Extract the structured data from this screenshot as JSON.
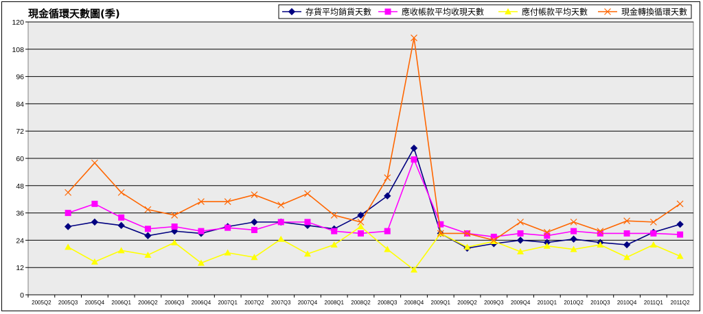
{
  "chart_data": {
    "type": "line",
    "title": "現金循環天數圖(季)",
    "xlabel": "",
    "ylabel": "",
    "ylim": [
      0,
      120
    ],
    "yticks": [
      0,
      12,
      24,
      36,
      48,
      60,
      72,
      84,
      96,
      108,
      120
    ],
    "grid": true,
    "legend_position": "top-right",
    "categories": [
      "2005Q2",
      "2005Q3",
      "2005Q4",
      "2006Q1",
      "2006Q2",
      "2006Q3",
      "2006Q4",
      "2007Q1",
      "2007Q2",
      "2007Q3",
      "2007Q4",
      "2008Q1",
      "2008Q2",
      "2008Q3",
      "2008Q4",
      "2009Q1",
      "2009Q2",
      "2009Q3",
      "2009Q4",
      "2010Q1",
      "2010Q2",
      "2010Q3",
      "2010Q4",
      "2011Q1",
      "2011Q2"
    ],
    "series": [
      {
        "name": "存貨平均銷貨天數",
        "color": "#000080",
        "marker": "diamond",
        "values": [
          null,
          30,
          32,
          30.5,
          26,
          28,
          27,
          30,
          32,
          32,
          30.5,
          29,
          35,
          43.5,
          64.5,
          27,
          20.5,
          22.5,
          24,
          23,
          24.5,
          23,
          22,
          27.5,
          31
        ]
      },
      {
        "name": "應收帳款平均收現天數",
        "color": "#FF00FF",
        "marker": "square",
        "values": [
          null,
          36,
          40,
          34,
          29,
          30,
          28,
          29.5,
          28.5,
          32,
          32,
          28,
          27,
          28,
          59.5,
          31,
          27,
          25.5,
          27,
          26,
          28,
          27,
          27,
          27,
          26.5
        ]
      },
      {
        "name": "應付帳款平均天數",
        "color": "#FFFF00",
        "marker": "triangle",
        "values": [
          null,
          21,
          14.5,
          19.5,
          17.5,
          23,
          14,
          18.5,
          16.5,
          24.5,
          18,
          22,
          30,
          20,
          11,
          27,
          21,
          23.5,
          19,
          21.5,
          20,
          22,
          16.5,
          22,
          17
        ]
      },
      {
        "name": "現金轉換循環天數",
        "color": "#FF6600",
        "marker": "x",
        "values": [
          null,
          45,
          58,
          45,
          37.5,
          35,
          41,
          41,
          44,
          39.5,
          44.5,
          35,
          32,
          51.5,
          113,
          27,
          27,
          24,
          32,
          27.5,
          32,
          28,
          32.5,
          32,
          40
        ]
      }
    ]
  }
}
